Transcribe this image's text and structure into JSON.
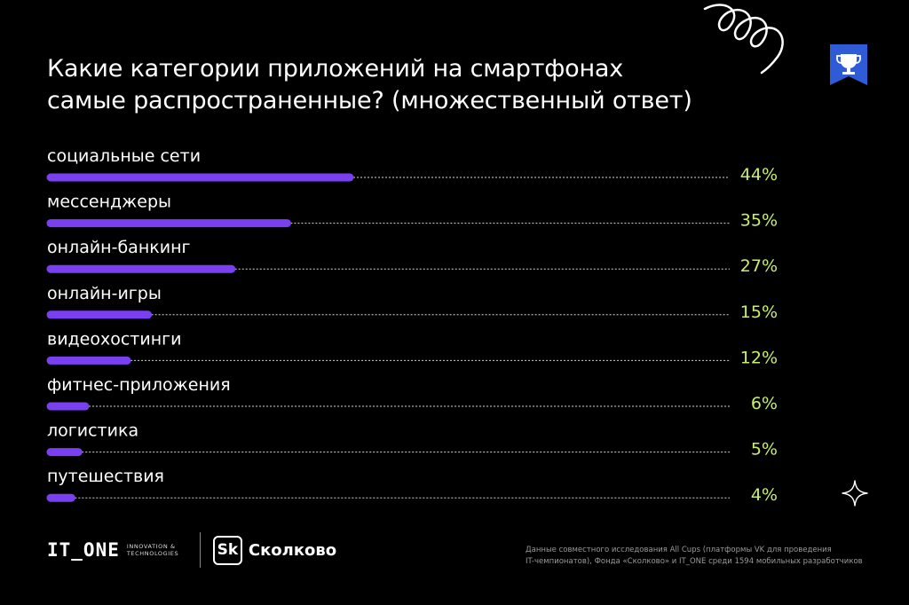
{
  "title": {
    "line1": "Какие категории приложений на смартфонах",
    "line2": "самые распространенные? (множественный ответ)"
  },
  "chart_data": {
    "type": "bar",
    "orientation": "horizontal",
    "categories": [
      "социальные сети",
      "мессенджеры",
      "онлайн-банкинг",
      "онлайн-игры",
      "видеохостинги",
      "фитнес-приложения",
      "логистика",
      "путешествия"
    ],
    "values": [
      44,
      35,
      27,
      15,
      12,
      6,
      5,
      4
    ],
    "value_labels": [
      "44%",
      "35%",
      "27%",
      "15%",
      "12%",
      "6%",
      "5%",
      "4%"
    ],
    "xlim": [
      0,
      100
    ],
    "grid": false,
    "legend": "none"
  },
  "colors": {
    "bar": "#7b3ff2",
    "value_text": "#c8ef6a",
    "background": "#000000",
    "badge": "#2f5bd6"
  },
  "footer": {
    "brand": "IT_ONE",
    "brand_sub_line1": "INNOVATION &",
    "brand_sub_line2": "TECHNOLOGIES",
    "partner_mark": "Sk",
    "partner_name": "Сколково",
    "source_line1": "Данные совместного исследования All Cups (платформы VK для проведения",
    "source_line2": "IT-чемпионатов), Фонда «Сколково» и IT_ONE среди 1594 мобильных разработчиков"
  },
  "icons": {
    "badge": "trophy-badge-icon",
    "star": "sparkle-star-icon",
    "decor": "spiral-decoration-icon"
  }
}
